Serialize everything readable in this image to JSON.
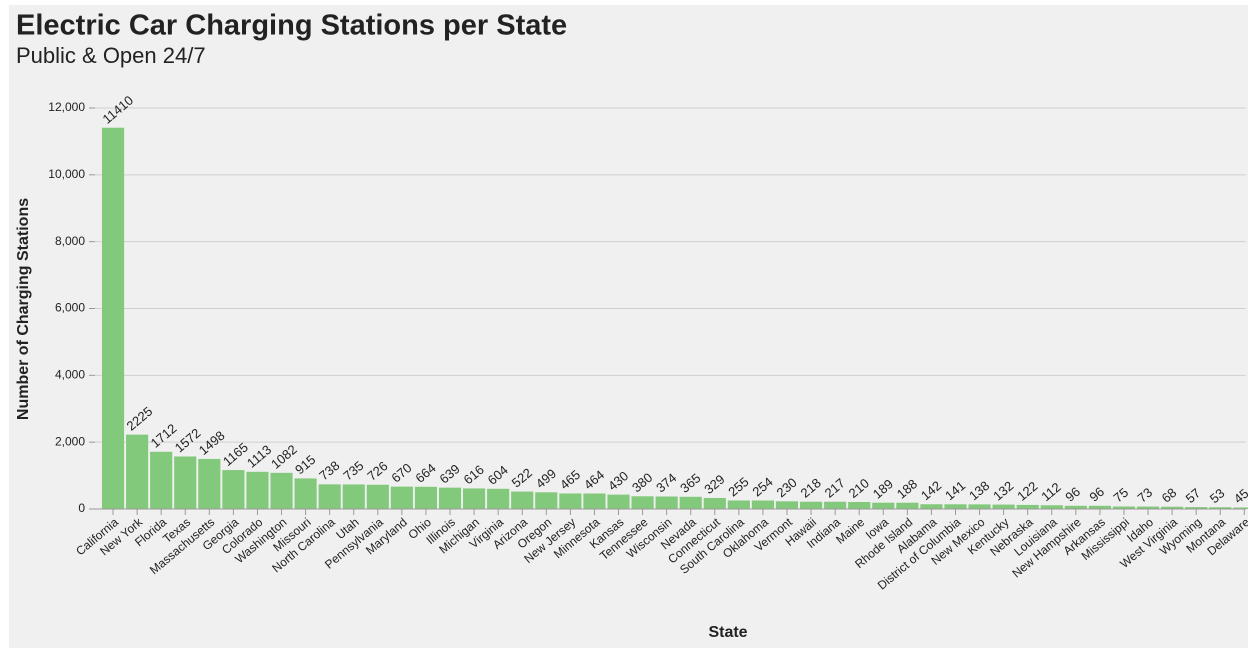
{
  "chart_data": {
    "type": "bar",
    "title": "Electric Car Charging Stations per State",
    "subtitle": "Public & Open 24/7",
    "x_label": "State",
    "y_label": "Number of Charging Stations",
    "categories": [
      "California",
      "New York",
      "Florida",
      "Texas",
      "Massachusetts",
      "Georgia",
      "Colorado",
      "Washington",
      "Missouri",
      "North Carolina",
      "Utah",
      "Pennsylvania",
      "Maryland",
      "Ohio",
      "Illinois",
      "Michigan",
      "Virginia",
      "Arizona",
      "Oregon",
      "New Jersey",
      "Minnesota",
      "Kansas",
      "Tennessee",
      "Wisconsin",
      "Nevada",
      "Connecticut",
      "South Carolina",
      "Oklahoma",
      "Vermont",
      "Hawaii",
      "Indiana",
      "Maine",
      "Iowa",
      "Rhode Island",
      "Alabama",
      "District of Columbia",
      "New Mexico",
      "Kentucky",
      "Nebraska",
      "Louisiana",
      "New Hampshire",
      "Arkansas",
      "Mississippi",
      "Idaho",
      "West Virginia",
      "Wyoming",
      "Montana",
      "Delaware"
    ],
    "values": [
      11410,
      2225,
      1712,
      1572,
      1498,
      1165,
      1113,
      1082,
      915,
      738,
      735,
      726,
      670,
      664,
      639,
      616,
      604,
      522,
      499,
      465,
      464,
      430,
      380,
      374,
      365,
      329,
      255,
      254,
      230,
      218,
      217,
      210,
      189,
      188,
      142,
      141,
      138,
      132,
      122,
      112,
      96,
      96,
      75,
      73,
      68,
      57,
      53,
      45
    ],
    "color": "#82c97b",
    "ylim": [
      0,
      12000
    ],
    "yticks": [
      0,
      {
        "value": 2000,
        "label": "2,000"
      },
      {
        "value": 4000,
        "label": "4,000"
      },
      {
        "value": 6000,
        "label": "6,000"
      },
      {
        "value": 8000,
        "label": "8,000"
      },
      {
        "value": 10000,
        "label": "10,000"
      },
      {
        "value": 12000,
        "label": "12,000"
      }
    ],
    "grid": true
  }
}
